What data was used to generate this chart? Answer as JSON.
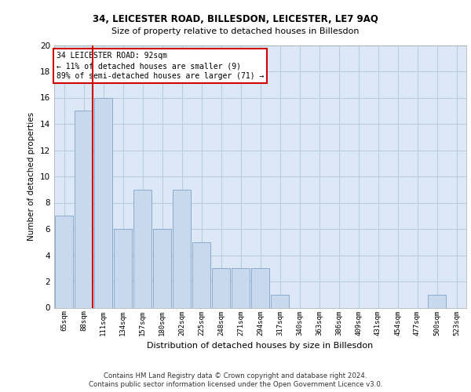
{
  "title1": "34, LEICESTER ROAD, BILLESDON, LEICESTER, LE7 9AQ",
  "title2": "Size of property relative to detached houses in Billesdon",
  "xlabel": "Distribution of detached houses by size in Billesdon",
  "ylabel": "Number of detached properties",
  "categories": [
    "65sqm",
    "88sqm",
    "111sqm",
    "134sqm",
    "157sqm",
    "180sqm",
    "202sqm",
    "225sqm",
    "248sqm",
    "271sqm",
    "294sqm",
    "317sqm",
    "340sqm",
    "363sqm",
    "386sqm",
    "409sqm",
    "431sqm",
    "454sqm",
    "477sqm",
    "500sqm",
    "523sqm"
  ],
  "values": [
    7,
    15,
    16,
    6,
    9,
    6,
    9,
    5,
    3,
    3,
    3,
    1,
    0,
    0,
    0,
    0,
    0,
    0,
    0,
    1,
    0
  ],
  "bar_color": "#c8d9ee",
  "bar_edge_color": "#8aabcf",
  "annotation_title": "34 LEICESTER ROAD: 92sqm",
  "annotation_line1": "← 11% of detached houses are smaller (9)",
  "annotation_line2": "89% of semi-detached houses are larger (71) →",
  "annotation_box_color": "#ffffff",
  "annotation_box_edge": "#cc0000",
  "vline_color": "#cc0000",
  "ylim": [
    0,
    20
  ],
  "yticks": [
    0,
    2,
    4,
    6,
    8,
    10,
    12,
    14,
    16,
    18,
    20
  ],
  "footnote1": "Contains HM Land Registry data © Crown copyright and database right 2024.",
  "footnote2": "Contains public sector information licensed under the Open Government Licence v3.0.",
  "plot_bg_color": "#dce8f5",
  "grid_color": "#b8cfe0",
  "vline_x_index": 1.5
}
